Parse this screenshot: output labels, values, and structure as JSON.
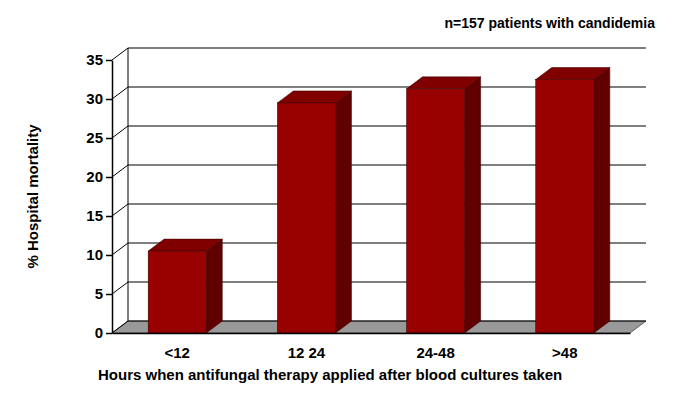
{
  "chart_data": {
    "type": "bar",
    "annotation": "n=157 patients with candidemia",
    "x_label": "Hours when antifungal therapy applied after blood cultures taken",
    "y_label": "% Hospital mortality",
    "categories": [
      "<12",
      "12 24",
      "24-48",
      ">48"
    ],
    "values": [
      10.5,
      29.5,
      31.3,
      32.5
    ],
    "color": "#990000",
    "ylim": [
      0,
      35
    ],
    "yticks": [
      0,
      5,
      10,
      15,
      20,
      25,
      30,
      35
    ],
    "grid": true
  }
}
